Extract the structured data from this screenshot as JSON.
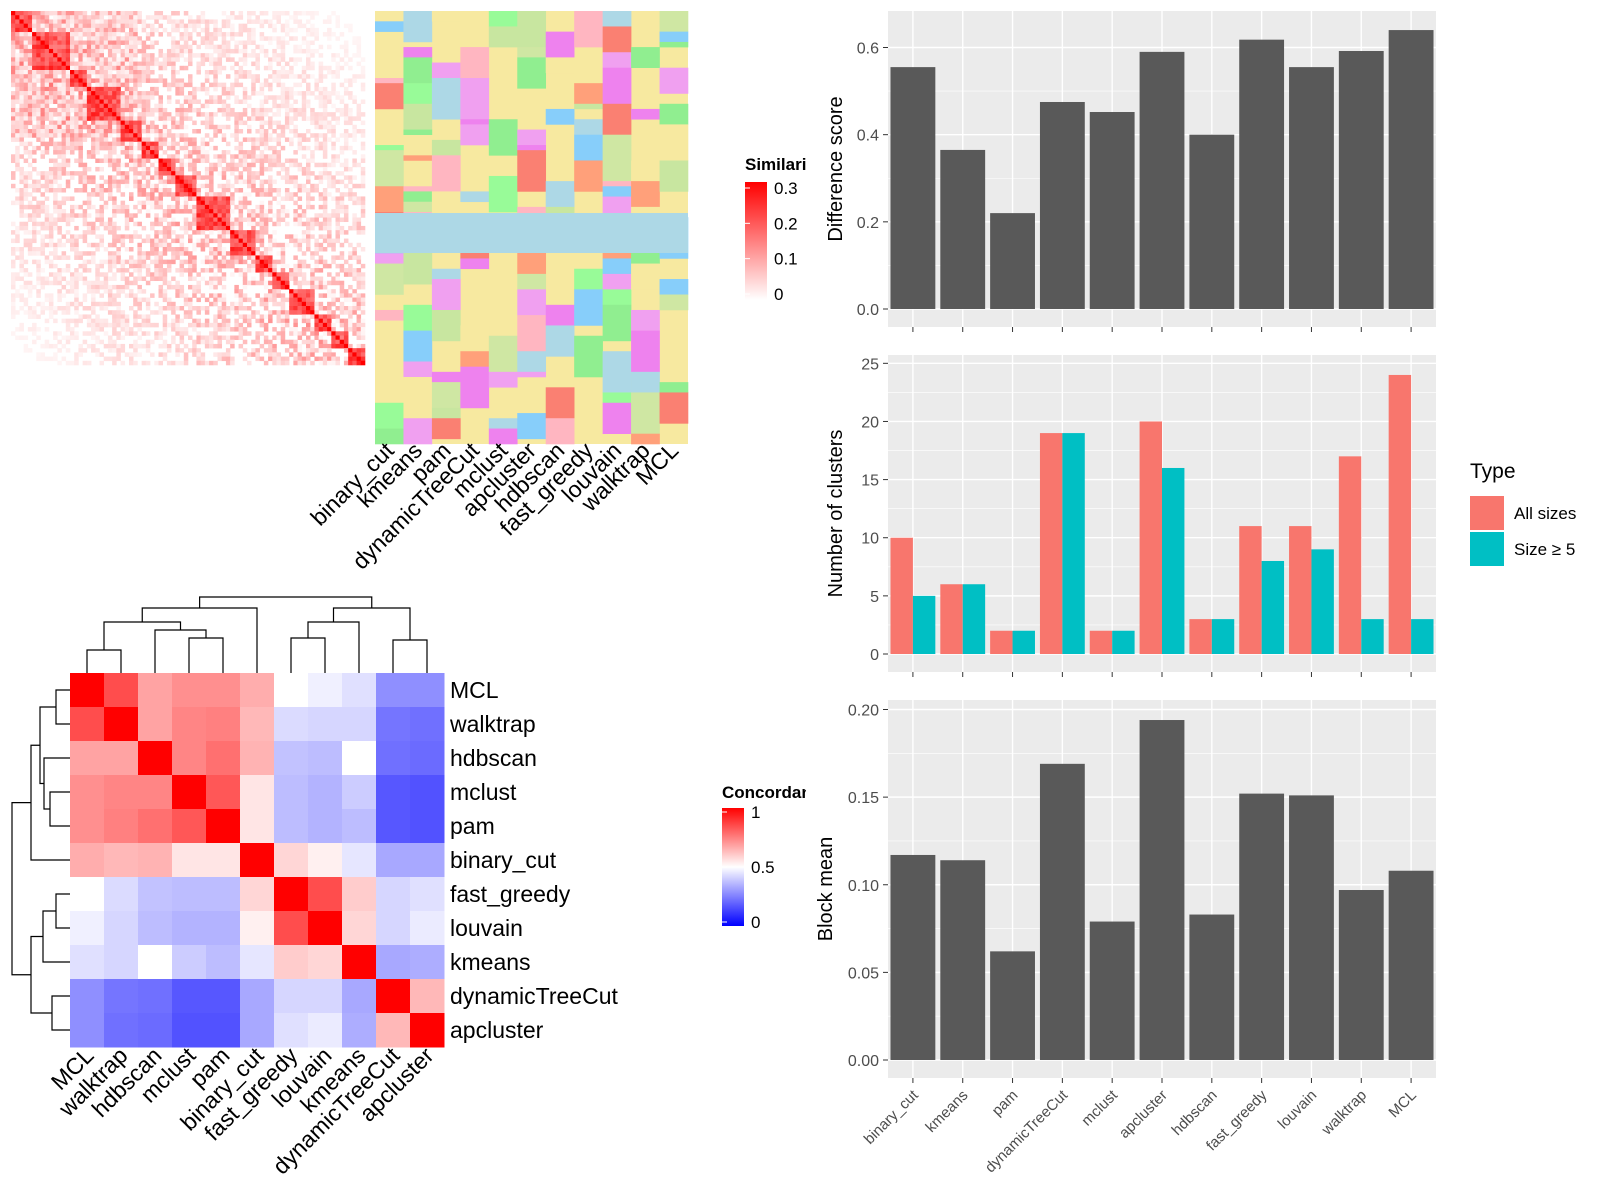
{
  "chart_data": [
    {
      "type": "heatmap",
      "panel": "similarity-matrix",
      "legend": {
        "title": "Similarity",
        "ticks": [
          "0.3",
          "0.2",
          "0.1",
          "0"
        ]
      },
      "columns": [
        "binary_cut",
        "kmeans",
        "pam",
        "dynamicTreeCut",
        "mclust",
        "apcluster",
        "hdbscan",
        "fast_greedy",
        "louvain",
        "walktrap",
        "MCL"
      ],
      "blocks": [
        {
          "start": 0,
          "end": 5
        },
        {
          "start": 5,
          "end": 14
        },
        {
          "start": 14,
          "end": 18
        },
        {
          "start": 18,
          "end": 26
        },
        {
          "start": 26,
          "end": 31
        },
        {
          "start": 31,
          "end": 35
        },
        {
          "start": 35,
          "end": 39
        },
        {
          "start": 39,
          "end": 44
        },
        {
          "start": 44,
          "end": 52
        },
        {
          "start": 52,
          "end": 58
        },
        {
          "start": 58,
          "end": 62
        },
        {
          "start": 62,
          "end": 66
        },
        {
          "start": 66,
          "end": 72
        },
        {
          "start": 72,
          "end": 76
        },
        {
          "start": 76,
          "end": 80
        },
        {
          "start": 80,
          "end": 84
        }
      ],
      "n_terms": 84
    },
    {
      "type": "heatmap",
      "panel": "concordance",
      "legend": {
        "title": "Concordance",
        "ticks": [
          "1",
          "0.5",
          "0"
        ]
      },
      "rows": [
        "MCL",
        "walktrap",
        "hdbscan",
        "mclust",
        "pam",
        "binary_cut",
        "fast_greedy",
        "louvain",
        "kmeans",
        "dynamicTreeCut",
        "apcluster"
      ],
      "columns": [
        "MCL",
        "walktrap",
        "hdbscan",
        "mclust",
        "pam",
        "binary_cut",
        "fast_greedy",
        "louvain",
        "kmeans",
        "dynamicTreeCut",
        "apcluster"
      ],
      "values": [
        [
          1.0,
          0.85,
          0.68,
          0.72,
          0.72,
          0.66,
          0.5,
          0.47,
          0.44,
          0.28,
          0.28
        ],
        [
          0.85,
          1.0,
          0.68,
          0.74,
          0.75,
          0.64,
          0.43,
          0.42,
          0.42,
          0.23,
          0.22
        ],
        [
          0.68,
          0.68,
          1.0,
          0.74,
          0.78,
          0.65,
          0.38,
          0.37,
          0.5,
          0.22,
          0.21
        ],
        [
          0.72,
          0.74,
          0.74,
          1.0,
          0.83,
          0.55,
          0.37,
          0.35,
          0.4,
          0.17,
          0.16
        ],
        [
          0.72,
          0.75,
          0.78,
          0.83,
          1.0,
          0.55,
          0.37,
          0.35,
          0.37,
          0.17,
          0.16
        ],
        [
          0.66,
          0.64,
          0.65,
          0.55,
          0.55,
          1.0,
          0.58,
          0.53,
          0.45,
          0.33,
          0.33
        ],
        [
          0.5,
          0.43,
          0.38,
          0.37,
          0.37,
          0.58,
          1.0,
          0.85,
          0.6,
          0.42,
          0.44
        ],
        [
          0.47,
          0.42,
          0.37,
          0.35,
          0.35,
          0.53,
          0.85,
          1.0,
          0.58,
          0.42,
          0.46
        ],
        [
          0.44,
          0.42,
          0.5,
          0.4,
          0.37,
          0.45,
          0.6,
          0.58,
          1.0,
          0.33,
          0.34
        ],
        [
          0.28,
          0.23,
          0.22,
          0.17,
          0.17,
          0.33,
          0.42,
          0.42,
          0.33,
          1.0,
          0.64
        ],
        [
          0.28,
          0.22,
          0.21,
          0.16,
          0.16,
          0.33,
          0.44,
          0.46,
          0.34,
          0.64,
          1.0
        ]
      ]
    },
    {
      "type": "bar",
      "panel": "difference-score",
      "categories": [
        "binary_cut",
        "kmeans",
        "pam",
        "dynamicTreeCut",
        "mclust",
        "apcluster",
        "hdbscan",
        "fast_greedy",
        "louvain",
        "walktrap",
        "MCL"
      ],
      "values": [
        0.555,
        0.365,
        0.22,
        0.475,
        0.452,
        0.59,
        0.4,
        0.618,
        0.555,
        0.592,
        0.64
      ],
      "ylabel": "Difference score",
      "ylim": [
        0,
        0.67
      ],
      "yticks": [
        "0.0",
        "0.2",
        "0.4",
        "0.6"
      ],
      "grid": true
    },
    {
      "type": "bar",
      "panel": "number-of-clusters",
      "categories": [
        "binary_cut",
        "kmeans",
        "pam",
        "dynamicTreeCut",
        "mclust",
        "apcluster",
        "hdbscan",
        "fast_greedy",
        "louvain",
        "walktrap",
        "MCL"
      ],
      "series": [
        {
          "name": "All sizes",
          "color": "#f8766d",
          "values": [
            10,
            6,
            2,
            19,
            2,
            20,
            3,
            11,
            11,
            17,
            24
          ]
        },
        {
          "name": "Size ≥ 5",
          "color": "#00bfc4",
          "values": [
            5,
            6,
            2,
            19,
            2,
            16,
            3,
            8,
            9,
            3,
            3
          ]
        }
      ],
      "ylabel": "Number of clusters",
      "ylim": [
        0,
        25.2
      ],
      "yticks": [
        "0",
        "5",
        "10",
        "15",
        "20",
        "25"
      ],
      "legend": {
        "title": "Type",
        "position": "right"
      },
      "grid": true
    },
    {
      "type": "bar",
      "panel": "block-mean",
      "categories": [
        "binary_cut",
        "kmeans",
        "pam",
        "dynamicTreeCut",
        "mclust",
        "apcluster",
        "hdbscan",
        "fast_greedy",
        "louvain",
        "walktrap",
        "MCL"
      ],
      "values": [
        0.117,
        0.114,
        0.062,
        0.169,
        0.079,
        0.194,
        0.083,
        0.152,
        0.151,
        0.097,
        0.108
      ],
      "ylabel": "Block mean",
      "ylim": [
        0,
        0.202
      ],
      "yticks": [
        "0.00",
        "0.05",
        "0.10",
        "0.15",
        "0.20"
      ],
      "grid": true
    }
  ],
  "colors": {
    "panel_bg": "#ebebeb",
    "bar_fill": "#595959",
    "heat_red": "#ff0000",
    "heat_blue": "#0000ff"
  }
}
